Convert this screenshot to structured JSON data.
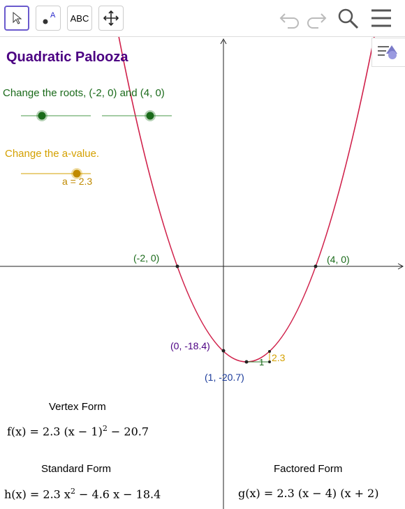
{
  "toolbar": {
    "text_tool": "ABC"
  },
  "title": "Quadratic Palooza",
  "roots_caption": "Change the roots, (-2, 0) and (4, 0)",
  "a_caption": "Change the a-value.",
  "a_label": "a = 2.3",
  "graph": {
    "points": [
      "(-2, 0)",
      "(4, 0)",
      "(0, -18.4)",
      "(1, -20.7)"
    ],
    "slope_run": "1",
    "slope_rise": "2.3"
  },
  "forms": {
    "vertex": {
      "heading": "Vertex Form",
      "before": "f(x) = 2.3 (x − 1)",
      "sup": "2",
      "after": " − 20.7"
    },
    "standard": {
      "heading": "Standard Form",
      "before": "h(x) = 2.3 x",
      "sup": "2",
      "after": " − 4.6 x − 18.4"
    },
    "factored": {
      "heading": "Factored Form",
      "text": "g(x) = 2.3 (x − 4) (x + 2)"
    }
  }
}
